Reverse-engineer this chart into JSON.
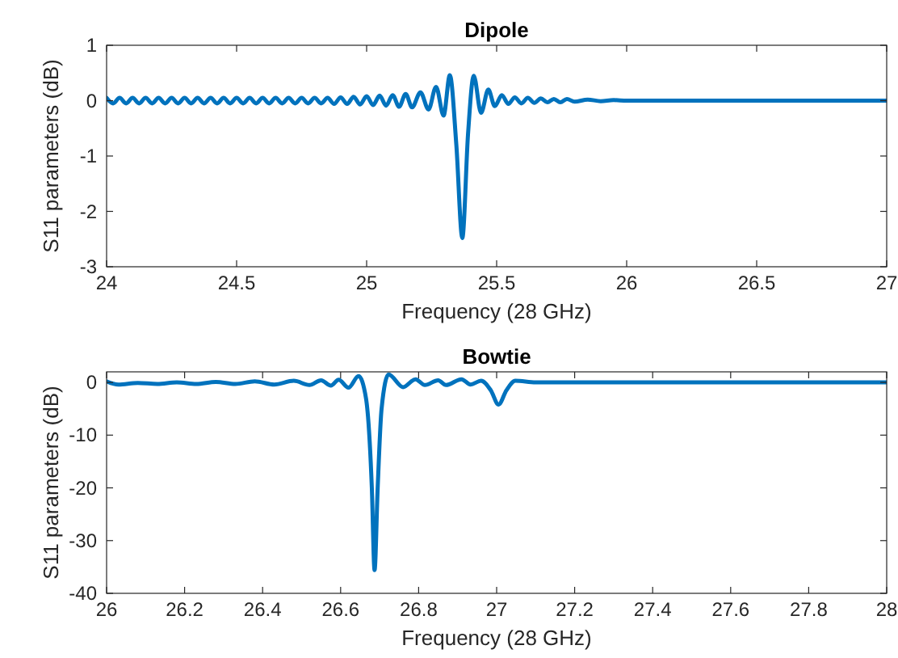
{
  "chart_data": [
    {
      "type": "line",
      "title": "Dipole",
      "xlabel": "Frequency (28 GHz)",
      "ylabel": "S11 parameters (dB)",
      "xlim": [
        24,
        27
      ],
      "ylim": [
        -3,
        1
      ],
      "xticks": [
        24,
        24.5,
        25,
        25.5,
        26,
        26.5,
        27
      ],
      "yticks": [
        -3,
        -2,
        -1,
        0,
        1
      ],
      "series": [
        {
          "color": "#0072bd",
          "x": [
            24,
            24.025,
            24.05,
            24.075,
            24.1,
            24.125,
            24.15,
            24.175,
            24.2,
            24.225,
            24.25,
            24.275,
            24.3,
            24.325,
            24.35,
            24.375,
            24.4,
            24.425,
            24.45,
            24.475,
            24.5,
            24.525,
            24.55,
            24.575,
            24.6,
            24.625,
            24.65,
            24.675,
            24.7,
            24.725,
            24.75,
            24.775,
            24.8,
            24.825,
            24.85,
            24.875,
            24.9,
            24.925,
            24.95,
            24.975,
            25,
            25.025,
            25.05,
            25.075,
            25.1,
            25.125,
            25.15,
            25.175,
            25.207,
            25.238,
            25.267,
            25.296,
            25.32,
            25.345,
            25.368,
            25.39,
            25.412,
            25.44,
            25.468,
            25.493,
            25.52,
            25.545,
            25.57,
            25.595,
            25.62,
            25.645,
            25.67,
            25.695,
            25.72,
            25.745,
            25.77,
            25.8,
            25.85,
            25.9,
            25.95,
            26,
            26.5,
            27
          ],
          "values": [
            0.05,
            -0.05,
            0.05,
            -0.05,
            0.05,
            -0.05,
            0.05,
            -0.05,
            0.05,
            -0.05,
            0.05,
            -0.05,
            0.05,
            -0.05,
            0.05,
            -0.05,
            0.05,
            -0.05,
            0.05,
            -0.05,
            0.05,
            -0.05,
            0.05,
            -0.05,
            0.05,
            -0.05,
            0.05,
            -0.05,
            0.05,
            -0.05,
            0.05,
            -0.05,
            0.05,
            -0.05,
            0.05,
            -0.06,
            0.06,
            -0.06,
            0.07,
            -0.07,
            0.08,
            -0.08,
            0.09,
            -0.09,
            0.1,
            -0.11,
            0.12,
            -0.12,
            0.15,
            -0.16,
            0.25,
            -0.27,
            0.46,
            -0.8,
            -2.48,
            -0.6,
            0.45,
            -0.22,
            0.2,
            -0.1,
            0.1,
            -0.06,
            0.06,
            -0.05,
            0.05,
            -0.04,
            0.04,
            -0.03,
            0.03,
            -0.03,
            0.03,
            -0.02,
            0.02,
            -0.01,
            0.01,
            0,
            0,
            0
          ]
        }
      ]
    },
    {
      "type": "line",
      "title": "Bowtie",
      "xlabel": "Frequency (28 GHz)",
      "ylabel": "S11 parameters (dB)",
      "xlim": [
        26,
        28
      ],
      "ylim": [
        -40,
        2
      ],
      "xticks": [
        26,
        26.2,
        26.4,
        26.6,
        26.8,
        27,
        27.2,
        27.4,
        27.6,
        27.8,
        28
      ],
      "yticks": [
        -40,
        -30,
        -20,
        -10,
        0
      ],
      "series": [
        {
          "color": "#0072bd",
          "x": [
            26,
            26.03,
            26.08,
            26.13,
            26.18,
            26.23,
            26.28,
            26.33,
            26.38,
            26.43,
            26.48,
            26.52,
            26.55,
            26.575,
            26.595,
            26.62,
            26.646,
            26.665,
            26.68,
            26.687,
            26.695,
            26.705,
            26.723,
            26.76,
            26.792,
            26.816,
            26.85,
            26.87,
            26.91,
            26.933,
            26.96,
            26.985,
            27.005,
            27.025,
            27.048,
            27.1,
            27.5,
            28
          ],
          "values": [
            0.2,
            -0.4,
            -0.1,
            -0.3,
            0,
            -0.3,
            0.1,
            -0.3,
            0.2,
            -0.4,
            0.3,
            -0.5,
            0.4,
            -0.6,
            0.5,
            -1,
            1.2,
            -3,
            -20,
            -35.6,
            -20,
            -5,
            1.5,
            -0.9,
            0.6,
            -0.5,
            0.4,
            -0.5,
            0.6,
            -0.4,
            0.3,
            -1.5,
            -4.2,
            -1.5,
            0.3,
            0,
            0,
            0
          ]
        }
      ]
    }
  ]
}
